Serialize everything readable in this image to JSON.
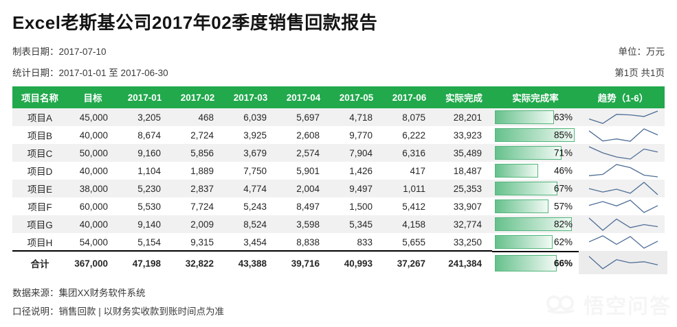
{
  "header": {
    "title": "Excel老斯基公司2017年02季度销售回款报告",
    "made_date": "制表日期：2017-07-10",
    "stat_date": "统计日期：2017-01-01 至 2017-06-30",
    "unit": "单位：万元",
    "page": "第1页 共1页"
  },
  "table": {
    "columns": [
      "项目名称",
      "目标",
      "2017-01",
      "2017-02",
      "2017-03",
      "2017-04",
      "2017-05",
      "2017-06",
      "实际完成",
      "实际完成率",
      "趋势（1-6）"
    ],
    "rows": [
      {
        "name": "项目A",
        "target": 45000,
        "months": [
          3205,
          468,
          6039,
          5697,
          4718,
          8075
        ],
        "actual": 28201,
        "pct": 63
      },
      {
        "name": "项目B",
        "target": 40000,
        "months": [
          8674,
          2724,
          3925,
          2608,
          9770,
          6222
        ],
        "actual": 33923,
        "pct": 85
      },
      {
        "name": "项目C",
        "target": 50000,
        "months": [
          9160,
          5856,
          3679,
          2574,
          7904,
          6316
        ],
        "actual": 35489,
        "pct": 71
      },
      {
        "name": "项目D",
        "target": 40000,
        "months": [
          1104,
          1889,
          7750,
          5901,
          1426,
          417
        ],
        "actual": 18487,
        "pct": 46
      },
      {
        "name": "项目E",
        "target": 38000,
        "months": [
          5230,
          2837,
          4774,
          2004,
          9497,
          1011
        ],
        "actual": 25353,
        "pct": 67
      },
      {
        "name": "项目F",
        "target": 60000,
        "months": [
          5530,
          7724,
          5243,
          8497,
          1500,
          5412
        ],
        "actual": 33907,
        "pct": 57
      },
      {
        "name": "项目G",
        "target": 40000,
        "months": [
          9140,
          2009,
          8524,
          3598,
          5345,
          4158
        ],
        "actual": 32774,
        "pct": 82
      },
      {
        "name": "项目H",
        "target": 54000,
        "months": [
          5154,
          9315,
          3454,
          8838,
          833,
          5655
        ],
        "actual": 33250,
        "pct": 62
      }
    ],
    "total": {
      "name": "合计",
      "target": 367000,
      "months": [
        47198,
        32822,
        43388,
        39716,
        40993,
        37267
      ],
      "actual": 241384,
      "pct": 66
    }
  },
  "footer": {
    "source": "数据来源：集团XX财务软件系统",
    "note": "口径说明：销售回款 | 以财务实收款到账时间点为准"
  },
  "watermark": {
    "text": "悟空问答"
  },
  "colors": {
    "header_green": "#21a94c",
    "stripe": "#f1f1f1",
    "bar_border": "#53b57c",
    "bar_fill_left": "#66c18c",
    "bar_fill_right": "#f2faf5",
    "sparkline": "#4d6d96"
  }
}
